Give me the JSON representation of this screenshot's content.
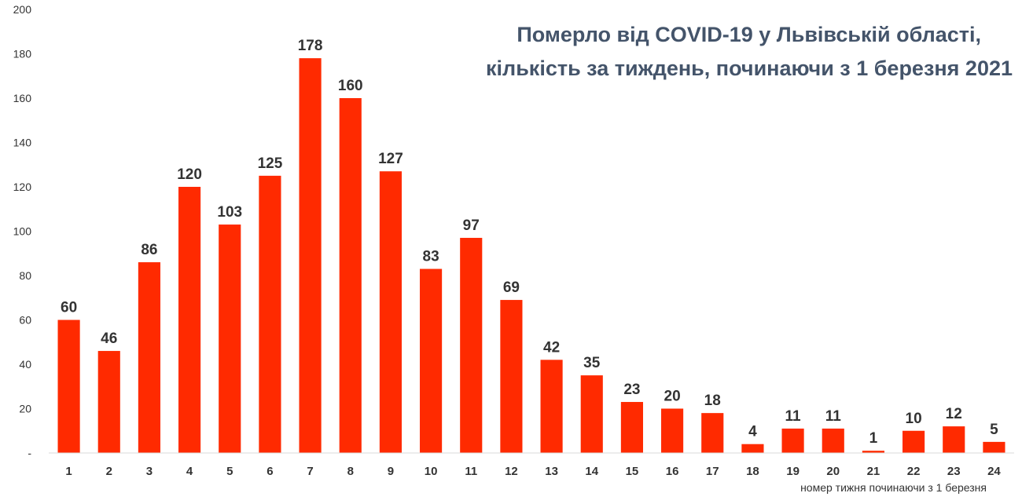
{
  "chart_data": {
    "type": "bar",
    "title_lines": [
      "Померло від COVID-19 у Львівській області,",
      "кількість за тиждень, починаючи з 1 березня 2021"
    ],
    "xlabel": "номер тижня починаючи з 1 березня",
    "ylabel": "",
    "categories": [
      "1",
      "2",
      "3",
      "4",
      "5",
      "6",
      "7",
      "8",
      "9",
      "10",
      "11",
      "12",
      "13",
      "14",
      "15",
      "16",
      "17",
      "18",
      "19",
      "20",
      "21",
      "22",
      "23",
      "24"
    ],
    "values": [
      60,
      46,
      86,
      120,
      103,
      125,
      178,
      160,
      127,
      83,
      97,
      69,
      42,
      35,
      23,
      20,
      18,
      4,
      11,
      11,
      1,
      10,
      12,
      5
    ],
    "ylim": [
      0,
      200
    ],
    "yticks": [
      "-",
      "20",
      "40",
      "60",
      "80",
      "100",
      "120",
      "140",
      "160",
      "180",
      "200"
    ],
    "bar_color": "#FF2A00",
    "grid": false,
    "legend": "none"
  }
}
